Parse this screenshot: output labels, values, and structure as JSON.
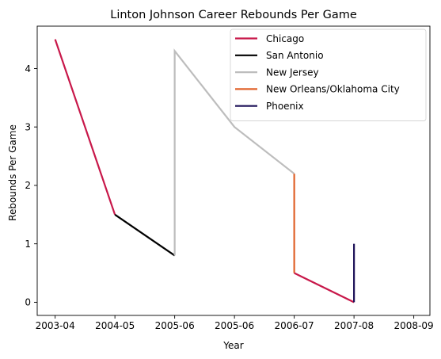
{
  "chart_data": {
    "type": "line",
    "title": "Linton Johnson Career Rebounds Per Game",
    "xlabel": "Year",
    "ylabel": "Rebounds Per Game",
    "x_ticks": [
      {
        "label": "2003-04",
        "x": 2003.0
      },
      {
        "label": "2004-05",
        "x": 2004.0
      },
      {
        "label": "2005-06",
        "x": 2005.0
      },
      {
        "label": "2005-06",
        "x": 2006.0
      },
      {
        "label": "2006-07",
        "x": 2007.0
      },
      {
        "label": "2007-08",
        "x": 2008.0
      },
      {
        "label": "2008-09",
        "x": 2009.0
      }
    ],
    "y_ticks": [
      0,
      1,
      2,
      3,
      4
    ],
    "xlim": [
      2002.7,
      2009.27
    ],
    "ylim": [
      -0.225,
      4.725
    ],
    "grid": false,
    "legend_position": "top-right",
    "series": [
      {
        "name": "Chicago",
        "color": "#c8184a",
        "points": [
          [
            2003.0,
            4.5
          ],
          [
            2004.0,
            1.5
          ]
        ]
      },
      {
        "name": "San Antonio",
        "color": "#000000",
        "points": [
          [
            2004.0,
            1.5
          ],
          [
            2005.0,
            0.8
          ]
        ]
      },
      {
        "name": "New Jersey",
        "color": "#bdbdbd",
        "points": [
          [
            2005.0,
            0.8
          ],
          [
            2005.0,
            4.3
          ],
          [
            2006.0,
            3.0
          ],
          [
            2007.0,
            2.2
          ]
        ]
      },
      {
        "name": "New Orleans/Oklahoma City",
        "color": "#e0622a",
        "points": [
          [
            2007.0,
            2.2
          ],
          [
            2007.0,
            0.5
          ]
        ]
      },
      {
        "name": "Chicago",
        "color": "#c8184a",
        "legend": false,
        "points": [
          [
            2007.0,
            0.5
          ],
          [
            2008.0,
            0.0
          ]
        ]
      },
      {
        "name": "Phoenix",
        "color": "#1d1158",
        "points": [
          [
            2008.0,
            0.0
          ],
          [
            2008.0,
            1.0
          ]
        ]
      }
    ]
  }
}
